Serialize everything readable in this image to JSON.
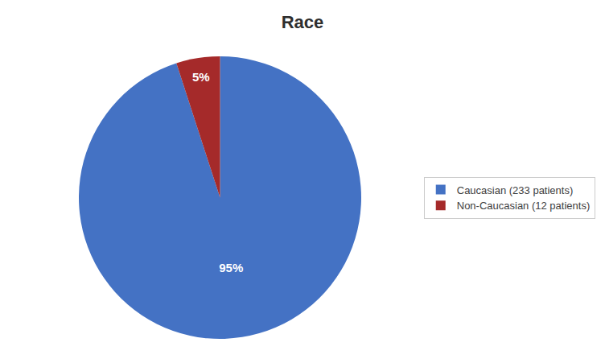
{
  "chart_data": {
    "type": "pie",
    "title": "Race",
    "categories": [
      "Caucasian (233 patients)",
      "Non-Caucasian (12 patients)"
    ],
    "values": [
      95,
      5
    ],
    "value_labels": [
      "95%",
      "5%"
    ],
    "colors": [
      "#4472C4",
      "#A52A2A"
    ],
    "data_labels": true,
    "legend": "right"
  }
}
